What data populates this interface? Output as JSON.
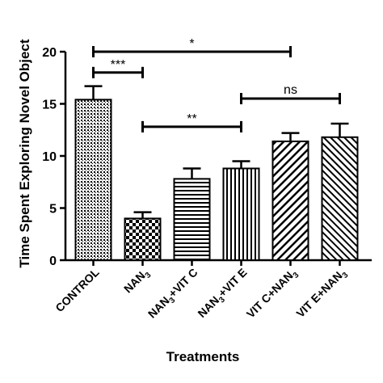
{
  "chart_data": {
    "type": "bar",
    "title": "",
    "xlabel": "Treatments",
    "ylabel": "Time Spent Exploring Novel Object",
    "ylim": [
      0,
      20
    ],
    "yticks": [
      0,
      5,
      10,
      15,
      20
    ],
    "grid": false,
    "legend": "none",
    "categories": [
      {
        "base": "CONTROL",
        "sub": "",
        "tail": ""
      },
      {
        "base": "NAN",
        "sub": "3",
        "tail": ""
      },
      {
        "base": "NAN",
        "sub": "3",
        "tail": "+VIT C"
      },
      {
        "base": "NAN",
        "sub": "3",
        "tail": "+VIT E"
      },
      {
        "base": "VIT C+NAN",
        "sub": "3",
        "tail": ""
      },
      {
        "base": "VIT E+NAN",
        "sub": "3",
        "tail": ""
      }
    ],
    "values": [
      15.4,
      4.0,
      7.8,
      8.8,
      11.4,
      11.8
    ],
    "errors": [
      1.3,
      0.6,
      1.0,
      0.7,
      0.8,
      1.3
    ],
    "patterns": [
      "crosshatch",
      "checker",
      "horizontal",
      "vertical",
      "diagonal",
      "diagonal-dense"
    ],
    "comparisons": [
      {
        "from": 0,
        "to": 4,
        "y": 20.0,
        "label": "*"
      },
      {
        "from": 0,
        "to": 1,
        "y": 18.0,
        "label": "***"
      },
      {
        "from": 3,
        "to": 5,
        "y": 15.5,
        "label": "ns"
      },
      {
        "from": 1,
        "to": 3,
        "y": 12.8,
        "label": "**"
      }
    ]
  }
}
